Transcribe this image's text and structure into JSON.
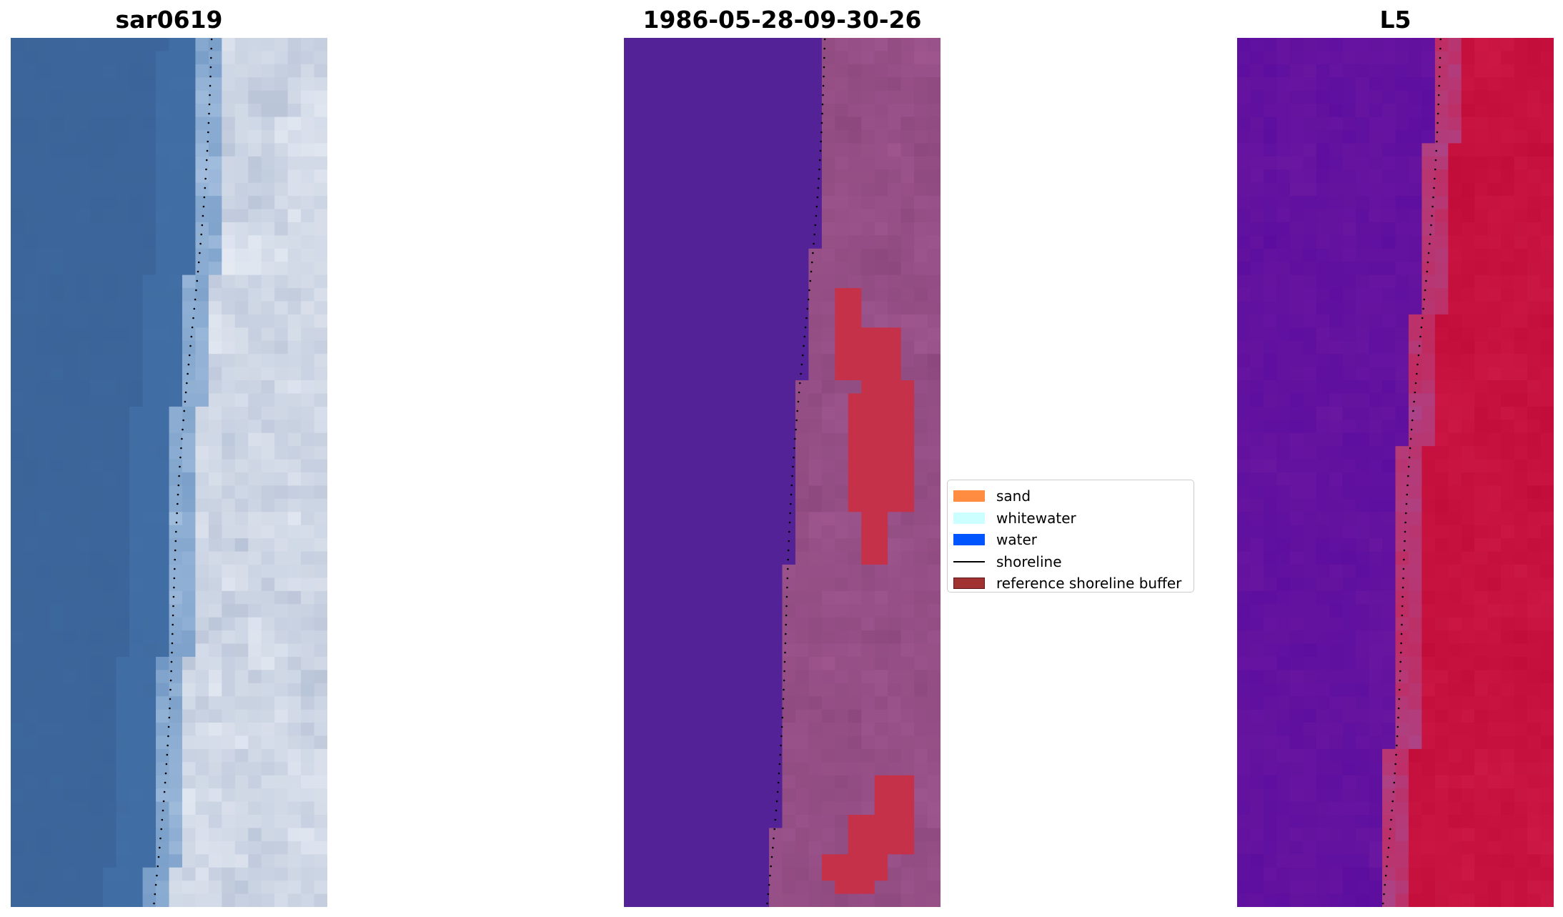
{
  "panels": [
    {
      "title": "sar0619"
    },
    {
      "title": "1986-05-28-09-30-26"
    },
    {
      "title": "L5"
    }
  ],
  "legend": {
    "items": [
      {
        "label": "sand",
        "kind": "patch",
        "color": "#ff8c40"
      },
      {
        "label": "whitewater",
        "kind": "patch",
        "color": "#ccffff"
      },
      {
        "label": "water",
        "kind": "patch",
        "color": "#0055ff"
      },
      {
        "label": "shoreline",
        "kind": "line",
        "color": "#000000"
      },
      {
        "label": "reference shoreline buffer",
        "kind": "patch",
        "color": "#a03232",
        "edge": "#5a1a1a"
      }
    ]
  },
  "colors": {
    "rgb_water": "#3b6499",
    "rgb_white": "#e8edf5",
    "class_water": "#542297",
    "class_sand": "#a05790",
    "buffer": "#c43148",
    "index_low": "#5b0d9f",
    "index_high": "#c00a37"
  }
}
